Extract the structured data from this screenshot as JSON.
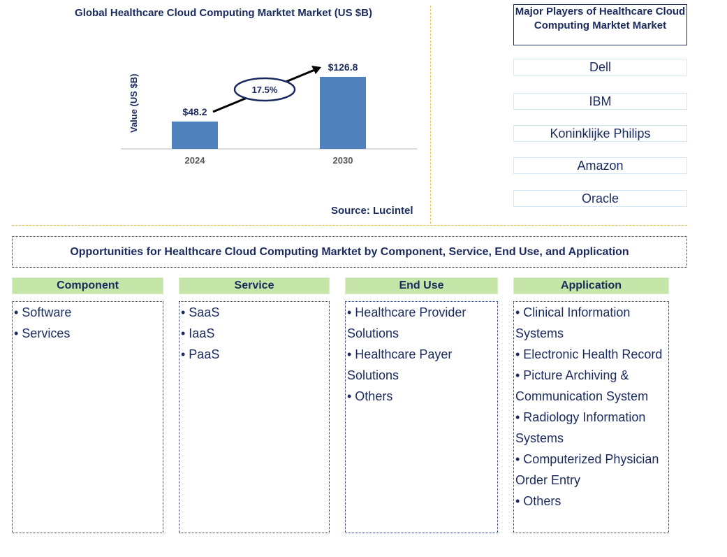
{
  "chart_data": {
    "type": "bar",
    "title": "Global Healthcare Cloud Computing Marktet Market (US $B)",
    "ylabel": "Value (US $B)",
    "xlabel": "",
    "categories": [
      "2024",
      "2030"
    ],
    "values": [
      48.2,
      126.8
    ],
    "data_labels": [
      "$48.2",
      "$126.8"
    ],
    "cagr_label": "17.5%",
    "bar_color": "#4f81bd",
    "ylim": [
      0,
      160
    ],
    "grid": false,
    "source": "Source: Lucintel"
  },
  "players": {
    "title": "Major Players of Healthcare Cloud Computing Marktet Market",
    "items": [
      "Dell",
      "IBM",
      "Koninklijke Philips",
      "Amazon",
      "Oracle"
    ]
  },
  "opportunities": {
    "title": "Opportunities for Healthcare Cloud Computing Marktet by Component, Service, End Use, and Application",
    "columns": [
      {
        "header": "Component",
        "items": [
          "• Software",
          "• Services"
        ]
      },
      {
        "header": "Service",
        "items": [
          "• SaaS",
          "• IaaS",
          "• PaaS"
        ]
      },
      {
        "header": "End Use",
        "items": [
          "• Healthcare Provider Solutions",
          "• Healthcare Payer Solutions",
          "• Others"
        ]
      },
      {
        "header": "Application",
        "items": [
          "• Clinical Information Systems",
          "• Electronic Health Record",
          "• Picture Archiving & Communication System",
          "• Radiology Information Systems",
          "• Computerized Physician Order Entry",
          "• Others"
        ]
      }
    ]
  }
}
